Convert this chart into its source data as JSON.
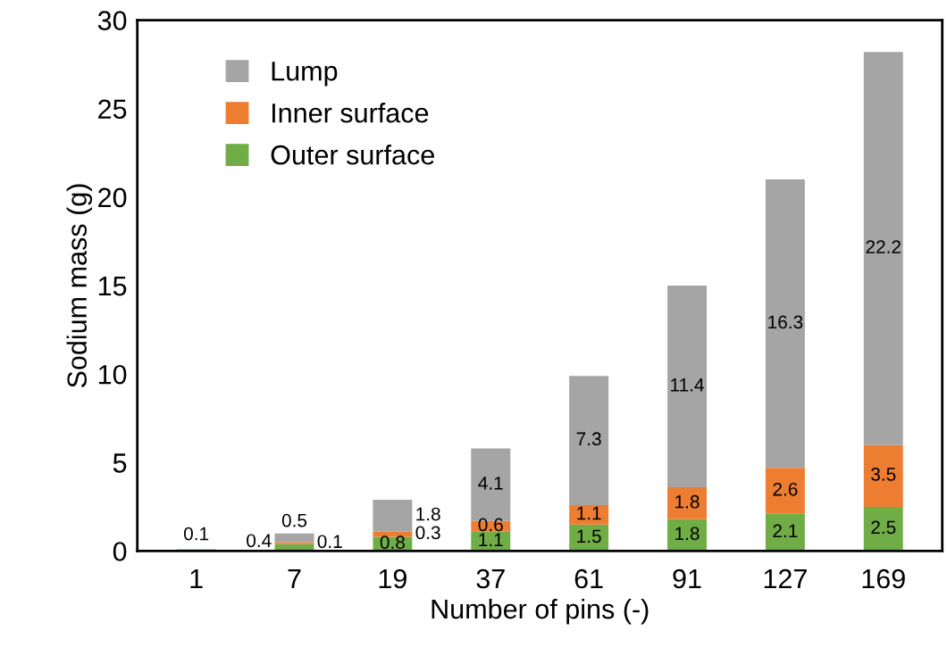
{
  "chart_data": {
    "type": "bar",
    "stacked": true,
    "xlabel": "Number of pins (-)",
    "ylabel": "Sodium mass (g)",
    "categories": [
      "1",
      "7",
      "19",
      "37",
      "61",
      "91",
      "127",
      "169"
    ],
    "series": [
      {
        "name": "Outer surface",
        "color": "#70ad47",
        "values": [
          0.1,
          0.4,
          0.8,
          1.1,
          1.5,
          1.8,
          2.1,
          2.5
        ],
        "value_labels": [
          "0.1",
          "0.4",
          "0.8",
          "1.1",
          "1.5",
          "1.8",
          "2.1",
          "2.5"
        ]
      },
      {
        "name": "Inner surface",
        "color": "#ed7d31",
        "values": [
          0,
          0.1,
          0.3,
          0.6,
          1.1,
          1.8,
          2.6,
          3.5
        ],
        "value_labels": [
          null,
          "0.1",
          "0.3",
          "0.6",
          "1.1",
          "1.8",
          "2.6",
          "3.5"
        ]
      },
      {
        "name": "Lump",
        "color": "#a5a5a5",
        "values": [
          0,
          0.5,
          1.8,
          4.1,
          7.3,
          11.4,
          16.3,
          22.2
        ],
        "value_labels": [
          null,
          "0.5",
          "1.8",
          "4.1",
          "7.3",
          "11.4",
          "16.3",
          "22.2"
        ]
      }
    ],
    "ylim": [
      0,
      30
    ],
    "yticks": [
      0,
      5,
      10,
      15,
      20,
      25,
      30
    ],
    "grid": false,
    "legend": "top left"
  }
}
